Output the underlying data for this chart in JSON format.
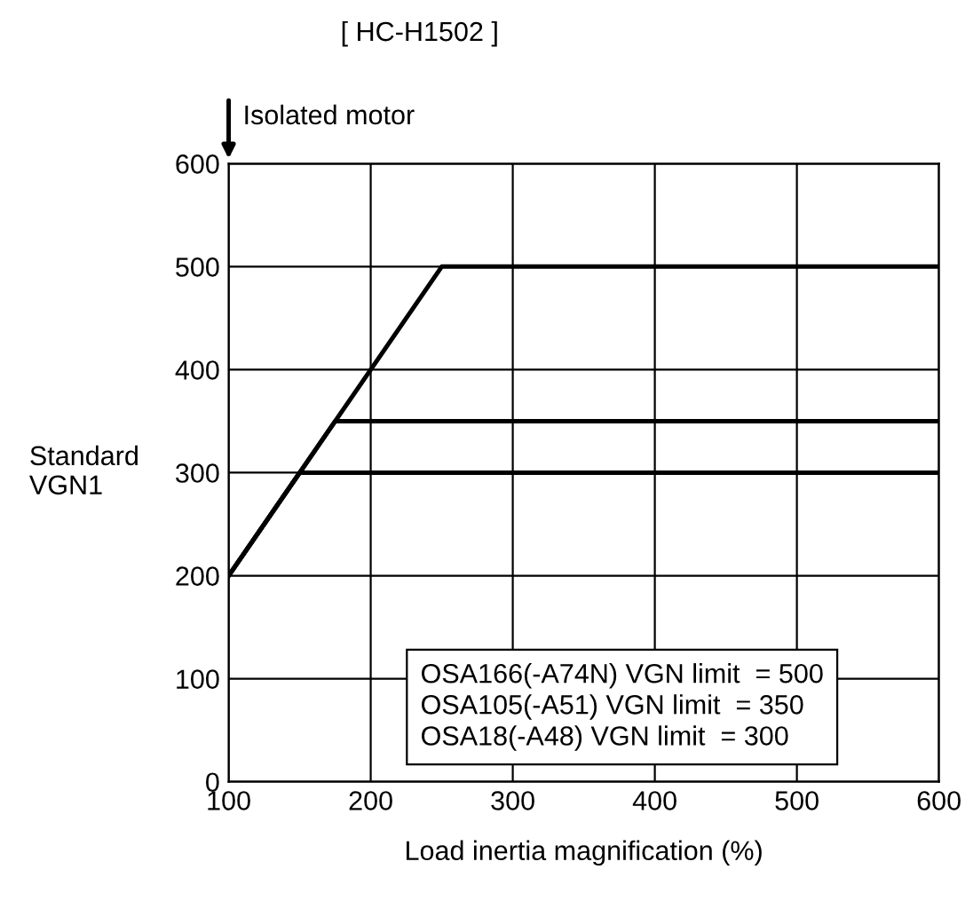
{
  "chart_data": {
    "type": "line",
    "title": "[ HC-H1502 ]",
    "xlabel": "Load inertia magnification (%)",
    "ylabel": "Standard\nVGN1",
    "series": [
      {
        "color": "#000000",
        "x": [
          100,
          250,
          600
        ],
        "values": [
          200,
          500,
          500
        ]
      },
      {
        "color": "#000000",
        "x": [
          100,
          175,
          600
        ],
        "values": [
          200,
          350,
          350
        ]
      },
      {
        "color": "#000000",
        "x": [
          100,
          150,
          600
        ],
        "values": [
          200,
          300,
          300
        ]
      }
    ],
    "annotations": [
      "Isolated motor",
      "OSA166(-A74N) VGN limit  = 500\nOSA105(-A51) VGN limit  = 350\nOSA18(-A48) VGN limit  = 300"
    ],
    "xlim": [
      100,
      600
    ],
    "xticks": [
      100,
      200,
      300,
      400,
      500,
      600
    ],
    "ylim": [
      0,
      600
    ],
    "yticks": [
      0,
      100,
      200,
      300,
      400,
      500,
      600
    ],
    "grid": true,
    "marker": "none",
    "line_style": "solid",
    "legend": false
  }
}
